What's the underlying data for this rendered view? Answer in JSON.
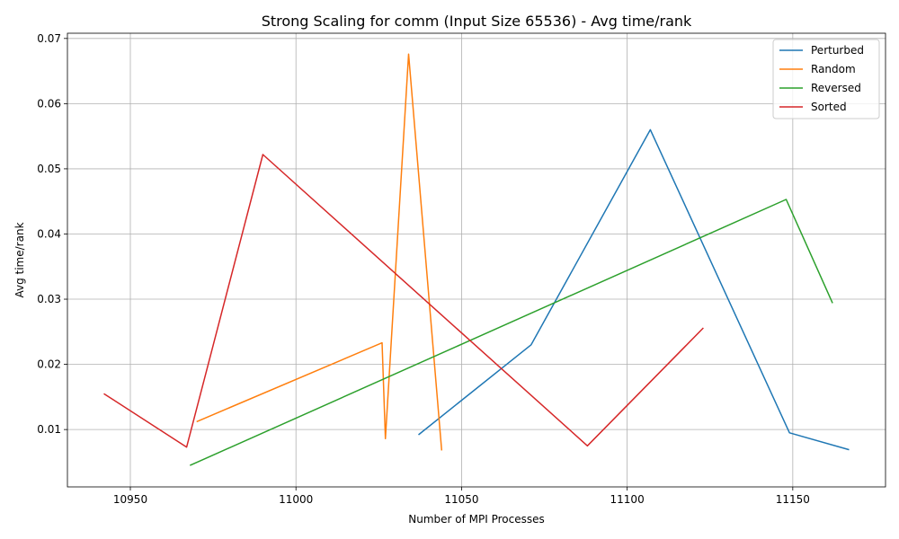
{
  "chart_data": {
    "type": "line",
    "title": "Strong Scaling for comm (Input Size 65536) - Avg time/rank",
    "xlabel": "Number of MPI Processes",
    "ylabel": "Avg time/rank",
    "xlim": [
      10931,
      11178
    ],
    "ylim": [
      0.0012,
      0.0708
    ],
    "xticks": [
      10950,
      11000,
      11050,
      11100,
      11150
    ],
    "xtick_labels": [
      "10950",
      "11000",
      "11050",
      "11100",
      "11150"
    ],
    "yticks": [
      0.01,
      0.02,
      0.03,
      0.04,
      0.05,
      0.06,
      0.07
    ],
    "ytick_labels": [
      "0.01",
      "0.02",
      "0.03",
      "0.04",
      "0.05",
      "0.06",
      "0.07"
    ],
    "grid": true,
    "legend_position": "top-right",
    "series": [
      {
        "name": "Perturbed",
        "color": "#1f77b4",
        "x": [
          11037,
          11071,
          11107,
          11149,
          11167
        ],
        "y": [
          0.0092,
          0.023,
          0.056,
          0.0095,
          0.0069
        ]
      },
      {
        "name": "Random",
        "color": "#ff7f0e",
        "x": [
          10970,
          11026,
          11027,
          11034,
          11044
        ],
        "y": [
          0.0112,
          0.0233,
          0.0086,
          0.0676,
          0.0068
        ]
      },
      {
        "name": "Reversed",
        "color": "#2ca02c",
        "x": [
          10968,
          11148,
          11162
        ],
        "y": [
          0.0045,
          0.0453,
          0.0294
        ]
      },
      {
        "name": "Sorted",
        "color": "#d62728",
        "x": [
          10942,
          10967,
          10990,
          11088,
          11123
        ],
        "y": [
          0.0155,
          0.0073,
          0.0522,
          0.0075,
          0.0256
        ]
      }
    ]
  }
}
